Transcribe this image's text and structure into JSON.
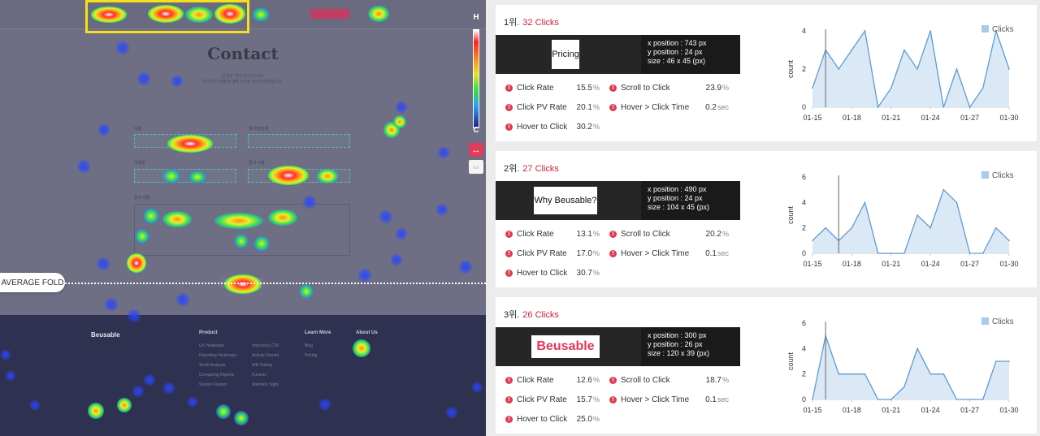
{
  "heatmap": {
    "contact_title": "Contact",
    "contact_subtitle_1": "궁금한 점이 있으신가요?",
    "contact_subtitle_2": "문의하신 내용에 대해 신속히 회신드리겠습니다.",
    "form": {
      "name_label": "이름",
      "company_label": "회사명/단체",
      "email_label": "이메일",
      "type_label": "문의 구분",
      "message_label": "문의 내용"
    },
    "fold_label": "AVERAGE FOLD",
    "scale_top": "H",
    "scale_bottom": "C",
    "swap_icon": "↔",
    "expand_icon": "⇔",
    "footer": {
      "logo": "Beusable",
      "product_head": "Product",
      "learn_head": "Learn More",
      "about_head": "About Us",
      "product_items": [
        "UX Heatmaps",
        "Reporting Heatmaps",
        "Scroll Analysis",
        "Comparing Reports",
        "Session Report"
      ],
      "product_items_2": [
        "Improving CTA",
        "Activity Stream",
        "A/B Testing",
        "Funnels",
        "Attention Sight"
      ],
      "learn_items": [
        "Blog",
        "Pricing"
      ]
    },
    "colors": {
      "hot": "#ff3030",
      "warm": "#ff9a1a",
      "mid": "#e8f028",
      "cool": "#36e05a",
      "cold": "#2846ff",
      "highlight": "#f4e11a"
    }
  },
  "ranks": [
    {
      "rank_label": "1위.",
      "clicks_label": "32 Clicks",
      "element_text": "Pricing",
      "element_kind": "text",
      "x_position": "x position : 743 px",
      "y_position": "y position : 24 px",
      "size": "size : 46 x 45 (px)",
      "stats": [
        {
          "label": "Click Rate",
          "value": "15.5",
          "unit": "%"
        },
        {
          "label": "Scroll to Click",
          "value": "23.9",
          "unit": "%"
        },
        {
          "label": "Click PV Rate",
          "value": "20.1",
          "unit": "%"
        },
        {
          "label": "Hover > Click Time",
          "value": "0.2",
          "unit": "sec"
        },
        {
          "label": "Hover to Click",
          "value": "30.2",
          "unit": "%"
        }
      ]
    },
    {
      "rank_label": "2위.",
      "clicks_label": "27 Clicks",
      "element_text": "Why Beusable?",
      "element_kind": "text",
      "x_position": "x position : 490 px",
      "y_position": "y position : 24 px",
      "size": "size : 104 x 45 (px)",
      "stats": [
        {
          "label": "Click Rate",
          "value": "13.1",
          "unit": "%"
        },
        {
          "label": "Scroll to Click",
          "value": "20.2",
          "unit": "%"
        },
        {
          "label": "Click PV Rate",
          "value": "17.0",
          "unit": "%"
        },
        {
          "label": "Hover > Click Time",
          "value": "0.1",
          "unit": "sec"
        },
        {
          "label": "Hover to Click",
          "value": "30.7",
          "unit": "%"
        }
      ]
    },
    {
      "rank_label": "3위.",
      "clicks_label": "26 Clicks",
      "element_text": "Beusable",
      "element_kind": "logo",
      "x_position": "x position : 300 px",
      "y_position": "y position : 26 px",
      "size": "size : 120 x 39 (px)",
      "stats": [
        {
          "label": "Click Rate",
          "value": "12.6",
          "unit": "%"
        },
        {
          "label": "Scroll to Click",
          "value": "18.7",
          "unit": "%"
        },
        {
          "label": "Click PV Rate",
          "value": "15.7",
          "unit": "%"
        },
        {
          "label": "Hover > Click Time",
          "value": "0.1",
          "unit": "sec"
        },
        {
          "label": "Hover to Click",
          "value": "25.0",
          "unit": "%"
        }
      ]
    }
  ],
  "chart_data": [
    {
      "type": "area",
      "legend": "Clicks",
      "ylabel": "count",
      "x_ticks": [
        "01-15",
        "01-18",
        "01-21",
        "01-24",
        "01-27",
        "01-30"
      ],
      "ylim": [
        0,
        4
      ],
      "y_ticks": [
        0,
        2,
        4
      ],
      "series": [
        {
          "name": "Clicks",
          "values": [
            1,
            3,
            2,
            3,
            4,
            0,
            1,
            3,
            2,
            4,
            0,
            2,
            0,
            1,
            4,
            2
          ]
        }
      ],
      "marker_index": 1,
      "color": "#5b9bd5"
    },
    {
      "type": "area",
      "legend": "Clicks",
      "ylabel": "count",
      "x_ticks": [
        "01-15",
        "01-18",
        "01-21",
        "01-24",
        "01-27",
        "01-30"
      ],
      "ylim": [
        0,
        6
      ],
      "y_ticks": [
        0,
        2,
        4,
        6
      ],
      "series": [
        {
          "name": "Clicks",
          "values": [
            1,
            2,
            1,
            2,
            4,
            0,
            0,
            0,
            3,
            2,
            5,
            4,
            0,
            0,
            2,
            1
          ]
        }
      ],
      "marker_index": 2,
      "color": "#5b9bd5"
    },
    {
      "type": "area",
      "legend": "Clicks",
      "ylabel": "count",
      "x_ticks": [
        "01-15",
        "01-18",
        "01-21",
        "01-24",
        "01-27",
        "01-30"
      ],
      "ylim": [
        0,
        6
      ],
      "y_ticks": [
        0,
        2,
        4,
        6
      ],
      "series": [
        {
          "name": "Clicks",
          "values": [
            0,
            5,
            2,
            2,
            2,
            0,
            0,
            1,
            4,
            2,
            2,
            0,
            0,
            0,
            3,
            3
          ]
        }
      ],
      "marker_index": 1,
      "color": "#5b9bd5"
    }
  ]
}
